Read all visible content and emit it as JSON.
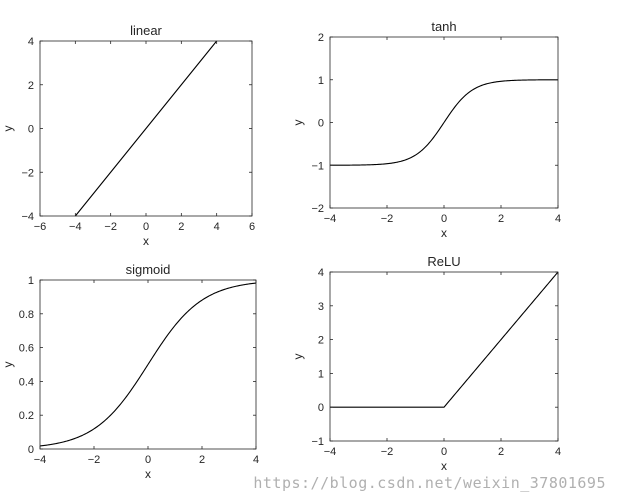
{
  "colors": {
    "line": "#000000",
    "axis": "#262626",
    "background": "#ffffff",
    "watermark": "#b0b0b0"
  },
  "watermark_text": "https://blog.csdn.net/weixin_37801695",
  "chart_data": [
    {
      "type": "line",
      "title": "linear",
      "xlabel": "x",
      "ylabel": "y",
      "xlim": [
        -6,
        6
      ],
      "ylim": [
        -4,
        4
      ],
      "xticks": [
        -6,
        -4,
        -2,
        0,
        2,
        4,
        6
      ],
      "yticks": [
        -4,
        -2,
        0,
        2,
        4
      ],
      "function": "linear",
      "domain": [
        -4,
        4
      ],
      "x": [
        -4,
        4
      ],
      "y": [
        -4,
        4
      ],
      "grid": false
    },
    {
      "type": "line",
      "title": "tanh",
      "xlabel": "x",
      "ylabel": "y",
      "xlim": [
        -4,
        4
      ],
      "ylim": [
        -2,
        2
      ],
      "xticks": [
        -4,
        -2,
        0,
        2,
        4
      ],
      "yticks": [
        -2,
        -1,
        0,
        1,
        2
      ],
      "function": "tanh",
      "domain": [
        -4,
        4
      ],
      "x": [
        -4,
        -3,
        -2,
        -1,
        0,
        1,
        2,
        3,
        4
      ],
      "y": [
        -0.999,
        -0.995,
        -0.964,
        -0.762,
        0,
        0.762,
        0.964,
        0.995,
        0.999
      ],
      "grid": false
    },
    {
      "type": "line",
      "title": "sigmoid",
      "xlabel": "x",
      "ylabel": "y",
      "xlim": [
        -4,
        4
      ],
      "ylim": [
        0,
        1
      ],
      "xticks": [
        -4,
        -2,
        0,
        2,
        4
      ],
      "yticks": [
        0,
        0.2,
        0.4,
        0.6,
        0.8,
        1
      ],
      "function": "sigmoid",
      "domain": [
        -4,
        4
      ],
      "x": [
        -4,
        -3,
        -2,
        -1,
        0,
        1,
        2,
        3,
        4
      ],
      "y": [
        0.018,
        0.047,
        0.119,
        0.269,
        0.5,
        0.731,
        0.881,
        0.953,
        0.982
      ],
      "grid": false
    },
    {
      "type": "line",
      "title": "ReLU",
      "xlabel": "x",
      "ylabel": "y",
      "xlim": [
        -4,
        4
      ],
      "ylim": [
        -1,
        4
      ],
      "xticks": [
        -4,
        -2,
        0,
        2,
        4
      ],
      "yticks": [
        -1,
        0,
        1,
        2,
        3,
        4
      ],
      "function": "relu",
      "domain": [
        -4,
        4
      ],
      "x": [
        -4,
        0,
        4
      ],
      "y": [
        0,
        0,
        4
      ],
      "grid": false
    }
  ]
}
